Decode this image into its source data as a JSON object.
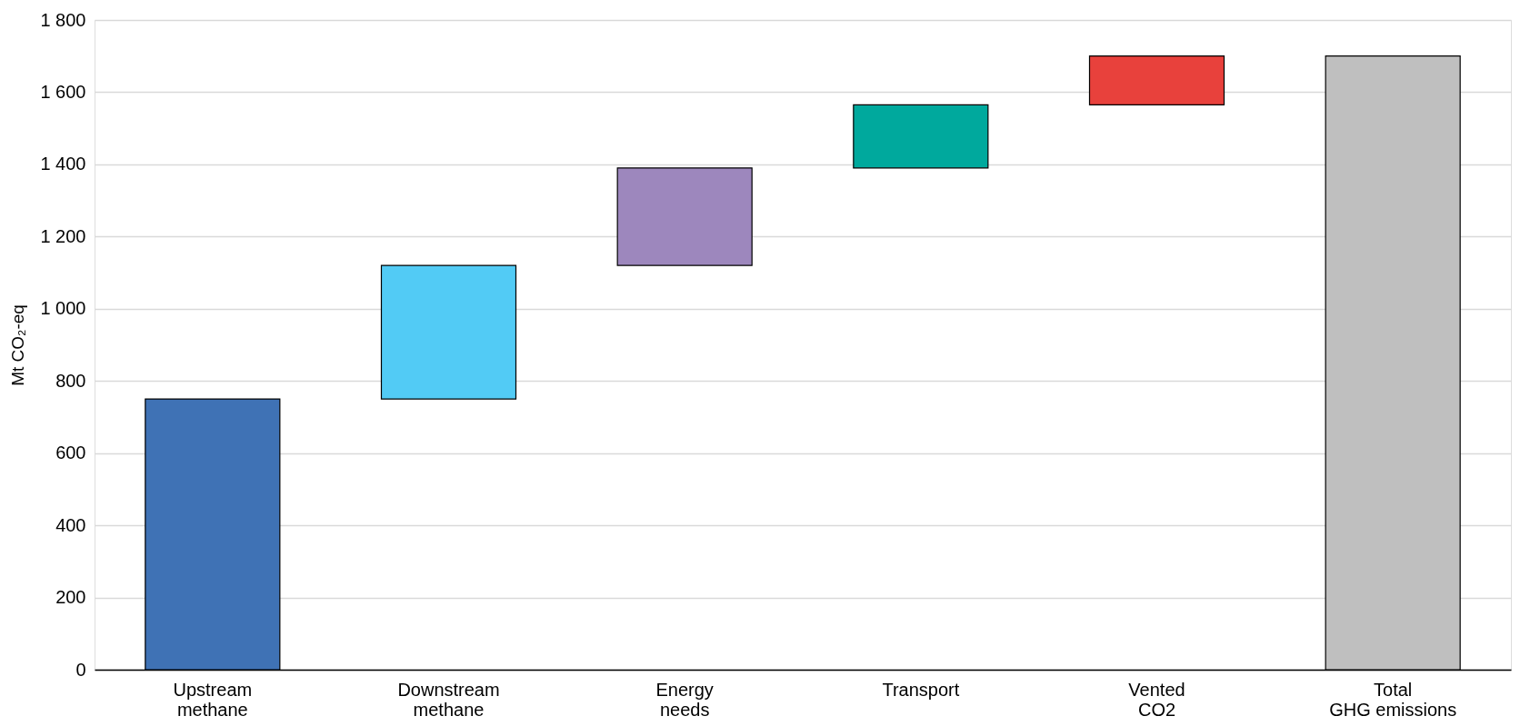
{
  "chart_data": {
    "type": "bar",
    "ylabel": "Mt CO₂-eq",
    "categories": [
      "Upstream methane",
      "Downstream methane",
      "Energy needs",
      "Transport",
      "Vented CO2",
      "Total GHG emissions"
    ],
    "values": [
      750,
      370,
      270,
      175,
      135,
      1700
    ],
    "base": [
      0,
      750,
      1120,
      1390,
      1565,
      0
    ],
    "colors": [
      "#3f72b5",
      "#52cbf5",
      "#9d87bd",
      "#00a99d",
      "#e8413c",
      "#bfbfbf"
    ],
    "ylim": [
      0,
      1800
    ],
    "yticks": [
      0,
      200,
      400,
      600,
      800,
      {
        "value": 1000,
        "label": "1 000"
      },
      {
        "value": 1200,
        "label": "1 200"
      },
      {
        "value": 1400,
        "label": "1 400"
      },
      {
        "value": 1600,
        "label": "1 600"
      },
      {
        "value": 1800,
        "label": "1 800"
      }
    ],
    "grid": "y"
  }
}
